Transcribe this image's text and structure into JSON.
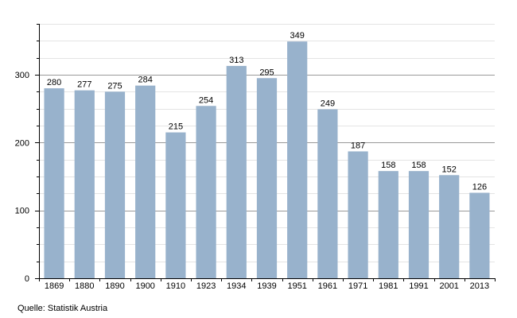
{
  "chart_data": {
    "type": "bar",
    "categories": [
      "1869",
      "1880",
      "1890",
      "1900",
      "1910",
      "1923",
      "1934",
      "1939",
      "1951",
      "1961",
      "1971",
      "1981",
      "1991",
      "2001",
      "2013"
    ],
    "values": [
      280,
      277,
      275,
      284,
      215,
      254,
      313,
      295,
      349,
      249,
      187,
      158,
      158,
      152,
      126
    ],
    "data_labels": [
      "280",
      "277",
      "275",
      "284",
      "215",
      "254",
      "313",
      "295",
      "349",
      "249",
      "187",
      "158",
      "158",
      "152",
      "126"
    ],
    "y_ticks": [
      0,
      100,
      200,
      300
    ],
    "y_tick_labels": [
      "0",
      "100",
      "200",
      "300"
    ],
    "ylim": [
      0,
      375
    ],
    "grid": true,
    "bar_color": "#98b2cc",
    "major_grid_color": "#9a9a9a",
    "minor_grid_color": "#e4e4e4",
    "title": "",
    "xlabel": "",
    "ylabel": ""
  },
  "source_text": "Quelle: Statistik Austria"
}
